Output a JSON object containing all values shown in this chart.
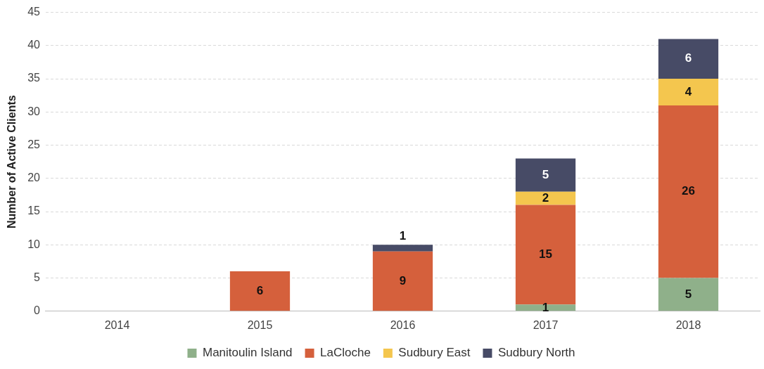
{
  "chart_data": {
    "type": "bar",
    "stacked": true,
    "ylabel": "Number of Active Clients",
    "categories": [
      "2014",
      "2015",
      "2016",
      "2017",
      "2018"
    ],
    "series": [
      {
        "name": "Manitoulin Island",
        "color": "#8fb08a",
        "values": [
          0,
          0,
          0,
          1,
          5
        ],
        "value_labels": [
          null,
          null,
          null,
          "1",
          "5"
        ]
      },
      {
        "name": "LaCloche",
        "color": "#d5603c",
        "values": [
          0,
          6,
          9,
          15,
          26
        ],
        "value_labels": [
          null,
          "6",
          "9",
          "15",
          "26"
        ]
      },
      {
        "name": "Sudbury East",
        "color": "#f4c64e",
        "values": [
          0,
          0,
          0,
          2,
          4
        ],
        "value_labels": [
          null,
          null,
          null,
          "2",
          "4"
        ]
      },
      {
        "name": "Sudbury North",
        "color": "#474b66",
        "values": [
          0,
          0,
          1,
          5,
          6
        ],
        "value_labels": [
          null,
          null,
          "1",
          "5",
          "6"
        ]
      }
    ],
    "ylim": [
      0,
      45
    ],
    "yticks": [
      0,
      5,
      10,
      15,
      20,
      25,
      30,
      35,
      40,
      45
    ],
    "grid": "y",
    "legend": "bottom"
  }
}
